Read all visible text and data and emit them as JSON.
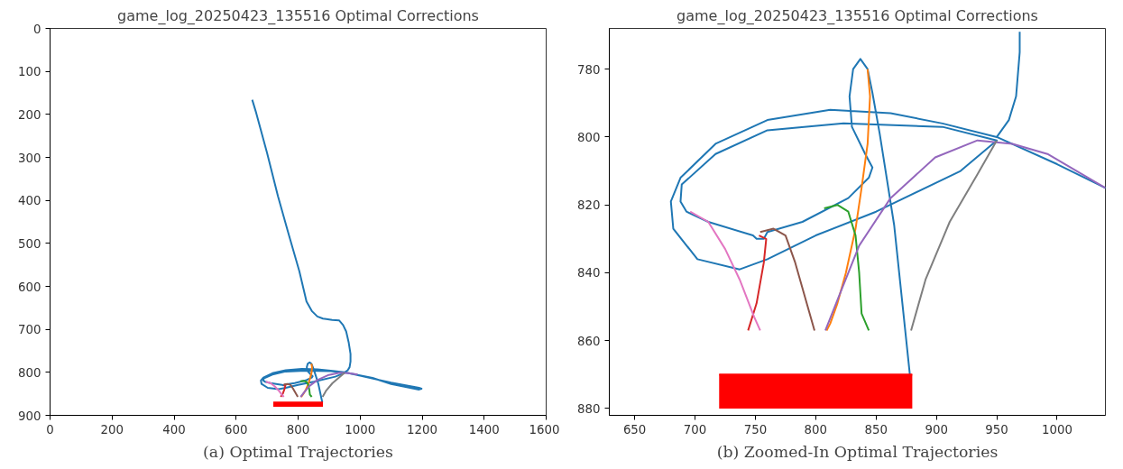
{
  "chart_data": [
    {
      "type": "line",
      "title": "game_log_20250423_135516 Optimal Corrections",
      "annotations": [
        "(a) Optimal Trajectories"
      ],
      "xlim": [
        0,
        1600
      ],
      "ylim": [
        900,
        0
      ],
      "xticks": [
        0,
        200,
        400,
        600,
        800,
        1000,
        1200,
        1400,
        1600
      ],
      "yticks": [
        0,
        100,
        200,
        300,
        400,
        500,
        600,
        700,
        800,
        900
      ],
      "series": [
        {
          "color": "#1f77b4",
          "x": [
            652,
            665,
            700,
            735,
            770,
            804,
            827,
            845,
            862,
            880,
            891,
            910,
            932,
            945,
            955,
            963,
            969,
            969,
            966,
            960,
            950,
            1000,
            1100,
            1190,
            1198,
            1190,
            1100,
            1040,
            992,
            950,
            905,
            862,
            812,
            760,
            717,
            688,
            680,
            682,
            702,
            737,
            760,
            800,
            850,
            920,
            950,
            905,
            823,
            760,
            717,
            689,
            688,
            693,
            711,
            748,
            751,
            757,
            760,
            789,
            827,
            844,
            847,
            841,
            830,
            828,
            831,
            837,
            843,
            847,
            853,
            865,
            878
          ],
          "values": [
            166,
            197,
            290,
            390,
            480,
            565,
            635,
            658,
            670,
            675,
            676,
            678,
            679,
            690,
            705,
            730,
            757,
            775,
            788,
            795,
            800,
            808,
            824,
            836,
            838,
            840,
            827,
            813,
            806,
            800,
            796,
            793,
            792,
            795,
            802,
            812,
            819,
            827,
            836,
            839,
            836,
            829,
            822,
            810,
            801,
            797,
            796,
            798,
            805,
            814,
            819,
            822,
            825,
            829,
            830,
            830,
            828,
            825,
            818,
            812,
            809,
            805,
            797,
            788,
            780,
            777,
            780,
            787,
            799,
            826,
            870
          ]
        },
        {
          "color": "#ff7f0e",
          "x": [
            809,
            812,
            818,
            825,
            833,
            838,
            843,
            845,
            843
          ],
          "values": [
            857,
            855,
            849,
            840,
            827,
            815,
            802,
            788,
            780
          ]
        },
        {
          "color": "#2ca02c",
          "x": [
            844,
            838,
            836,
            833,
            827,
            818,
            807
          ],
          "values": [
            857,
            852,
            840,
            829,
            822,
            820,
            821
          ]
        },
        {
          "color": "#d62728",
          "x": [
            744,
            751,
            757,
            759,
            753
          ],
          "values": [
            857,
            849,
            837,
            830,
            829
          ]
        },
        {
          "color": "#9467bd",
          "x": [
            808,
            818,
            836,
            862,
            899,
            934,
            963,
            992
          ],
          "values": [
            857,
            848,
            832,
            818,
            806,
            801,
            802,
            805
          ]
        },
        {
          "color": "#8c564b",
          "x": [
            799,
            783,
            775,
            765,
            754
          ],
          "values": [
            857,
            837,
            829,
            827,
            828
          ]
        },
        {
          "color": "#e377c2",
          "x": [
            754,
            749,
            737,
            725,
            711,
            696
          ],
          "values": [
            857,
            853,
            842,
            833,
            825,
            822
          ]
        },
        {
          "color": "#7f7f7f",
          "x": [
            879,
            891,
            911,
            934,
            950
          ],
          "values": [
            857,
            842,
            825,
            811,
            801
          ]
        },
        {
          "type": "line",
          "color": "#ff0000",
          "x": [
            720,
            880
          ],
          "values": [
            870,
            870
          ],
          "lower": [
            870,
            870
          ],
          "upper": [
            880,
            880
          ]
        }
      ]
    },
    {
      "type": "line",
      "title": "game_log_20250423_135516 Optimal Corrections",
      "annotations": [
        "(b) Zoomed-In Optimal Trajectories"
      ],
      "xlim": [
        629,
        1040
      ],
      "ylim": [
        882,
        768
      ],
      "xticks": [
        650,
        700,
        750,
        800,
        850,
        900,
        950,
        1000
      ],
      "yticks": [
        780,
        800,
        820,
        840,
        860,
        880
      ],
      "series": [
        {
          "color": "#1f77b4",
          "x": [
            969,
            969,
            966,
            960,
            950,
            1000,
            1040,
            1000,
            950,
            905,
            862,
            812,
            760,
            717,
            688,
            680,
            682,
            702,
            737,
            760,
            800,
            850,
            920,
            950,
            905,
            823,
            760,
            717,
            689,
            688,
            693,
            711,
            748,
            751,
            757,
            760,
            789,
            827,
            844,
            847,
            841,
            830,
            828,
            831,
            837,
            843,
            847,
            853,
            865,
            878
          ],
          "values": [
            769,
            775,
            788,
            795,
            800,
            808,
            815,
            808,
            800,
            796,
            793,
            792,
            795,
            802,
            812,
            819,
            827,
            836,
            839,
            836,
            829,
            822,
            810,
            801,
            797,
            796,
            798,
            805,
            814,
            819,
            822,
            825,
            829,
            830,
            830,
            828,
            825,
            818,
            812,
            809,
            805,
            797,
            788,
            780,
            777,
            780,
            787,
            799,
            826,
            870
          ]
        },
        {
          "color": "#ff7f0e",
          "x": [
            809,
            812,
            818,
            825,
            833,
            838,
            843,
            845,
            843
          ],
          "values": [
            857,
            855,
            849,
            840,
            827,
            815,
            802,
            788,
            780
          ]
        },
        {
          "color": "#2ca02c",
          "x": [
            844,
            838,
            836,
            833,
            827,
            818,
            807
          ],
          "values": [
            857,
            852,
            840,
            829,
            822,
            820,
            821
          ]
        },
        {
          "color": "#d62728",
          "x": [
            744,
            751,
            757,
            759,
            753
          ],
          "values": [
            857,
            849,
            837,
            830,
            829
          ]
        },
        {
          "color": "#9467bd",
          "x": [
            808,
            818,
            836,
            862,
            899,
            934,
            963,
            992,
            1040
          ],
          "values": [
            857,
            848,
            832,
            818,
            806,
            801,
            802,
            805,
            815
          ]
        },
        {
          "color": "#8c564b",
          "x": [
            799,
            783,
            775,
            765,
            754
          ],
          "values": [
            857,
            837,
            829,
            827,
            828
          ]
        },
        {
          "color": "#e377c2",
          "x": [
            754,
            749,
            737,
            725,
            711,
            696
          ],
          "values": [
            857,
            853,
            842,
            833,
            825,
            822
          ]
        },
        {
          "color": "#7f7f7f",
          "x": [
            879,
            891,
            911,
            934,
            950
          ],
          "values": [
            857,
            842,
            825,
            811,
            801
          ]
        },
        {
          "type": "line",
          "color": "#ff0000",
          "x": [
            720,
            880
          ],
          "values": [
            870,
            870
          ],
          "lower": [
            870,
            870
          ],
          "upper": [
            880,
            880
          ]
        }
      ]
    }
  ]
}
